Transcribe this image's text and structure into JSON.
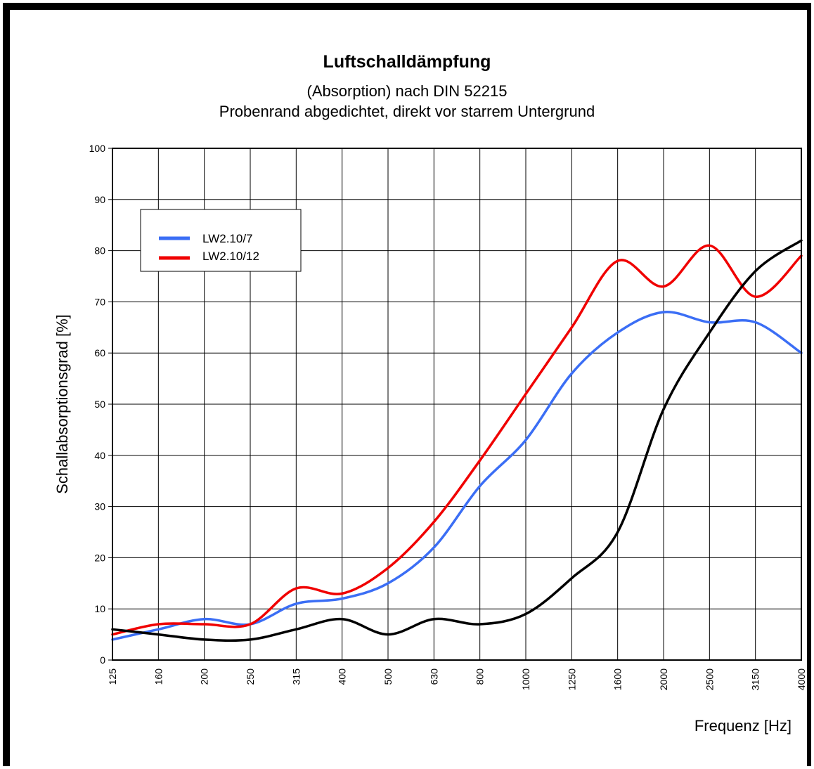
{
  "chart_data": {
    "type": "line",
    "title": "Luftschalldämpfung",
    "subtitle_1": "(Absorption) nach DIN 52215",
    "subtitle_2": "Probenrand abgedichtet, direkt vor starrem Untergrund",
    "xlabel": "Frequenz [Hz]",
    "ylabel": "Schallabsorptionsgrad [%]",
    "x_scale": "log",
    "categories": [
      "125",
      "160",
      "200",
      "250",
      "315",
      "400",
      "500",
      "630",
      "800",
      "1000",
      "1250",
      "1600",
      "2000",
      "2500",
      "3150",
      "4000"
    ],
    "yticks": [
      "0",
      "10",
      "20",
      "30",
      "40",
      "50",
      "60",
      "70",
      "80",
      "90",
      "100"
    ],
    "ylim": [
      0,
      100
    ],
    "grid": true,
    "legend_position": "top-left",
    "series": [
      {
        "name": "LW2.10/7",
        "color": "#3b6ef5",
        "values": [
          4,
          6,
          8,
          7,
          11,
          12,
          15,
          22,
          34,
          43,
          56,
          64,
          68,
          66,
          66,
          60
        ]
      },
      {
        "name": "LW2.10/12",
        "color": "#f00000",
        "values": [
          5,
          7,
          7,
          7,
          14,
          13,
          18,
          27,
          39,
          52,
          65,
          78,
          73,
          81,
          71,
          79
        ]
      },
      {
        "name": "",
        "color": "#000000",
        "values": [
          6,
          5,
          4,
          4,
          6,
          8,
          5,
          8,
          7,
          9,
          16,
          25,
          49,
          64,
          76,
          82
        ]
      }
    ]
  }
}
